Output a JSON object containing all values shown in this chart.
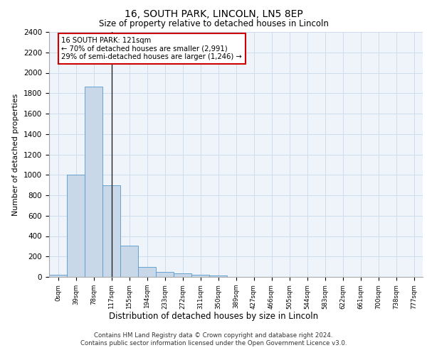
{
  "title1": "16, SOUTH PARK, LINCOLN, LN5 8EP",
  "title2": "Size of property relative to detached houses in Lincoln",
  "xlabel": "Distribution of detached houses by size in Lincoln",
  "ylabel": "Number of detached properties",
  "annotation_line1": "16 SOUTH PARK: 121sqm",
  "annotation_line2": "← 70% of detached houses are smaller (2,991)",
  "annotation_line3": "29% of semi-detached houses are larger (1,246) →",
  "footer1": "Contains HM Land Registry data © Crown copyright and database right 2024.",
  "footer2": "Contains public sector information licensed under the Open Government Licence v3.0.",
  "bar_color": "#c8d8e8",
  "bar_edge_color": "#5599cc",
  "marker_line_color": "#222222",
  "annotation_box_color": "#cc0000",
  "grid_color": "#ccddee",
  "bg_color": "#eef4f9",
  "categories": [
    "0sqm",
    "39sqm",
    "78sqm",
    "117sqm",
    "155sqm",
    "194sqm",
    "233sqm",
    "272sqm",
    "311sqm",
    "350sqm",
    "389sqm",
    "427sqm",
    "466sqm",
    "505sqm",
    "544sqm",
    "583sqm",
    "622sqm",
    "661sqm",
    "700sqm",
    "738sqm",
    "777sqm"
  ],
  "values": [
    20,
    1005,
    1865,
    900,
    305,
    100,
    50,
    35,
    22,
    15,
    0,
    0,
    0,
    0,
    0,
    0,
    0,
    0,
    0,
    0,
    0
  ],
  "ylim": [
    0,
    2400
  ],
  "yticks": [
    0,
    200,
    400,
    600,
    800,
    1000,
    1200,
    1400,
    1600,
    1800,
    2000,
    2200,
    2400
  ],
  "property_bin_index": 3
}
